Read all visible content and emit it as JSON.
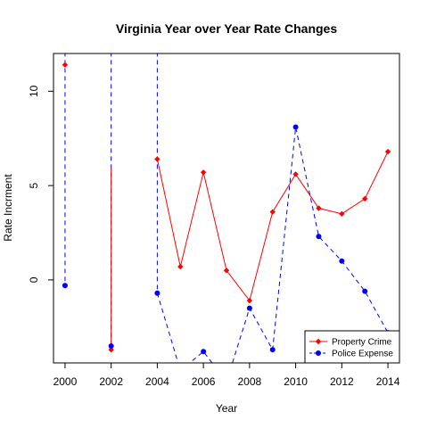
{
  "chart_data": {
    "type": "line",
    "title": "Virginia Year over Year Rate Changes",
    "xlabel": "Year",
    "ylabel": "Rate Incrment",
    "xlim": [
      1999.5,
      2014.5
    ],
    "ylim": [
      -4.4,
      12
    ],
    "x_ticks": [
      2000,
      2002,
      2004,
      2006,
      2008,
      2010,
      2012,
      2014
    ],
    "y_ticks": [
      0,
      5,
      10
    ],
    "grid": false,
    "legend_position": "bottom-right",
    "x": [
      2000,
      2001,
      2002,
      2003,
      2004,
      2005,
      2006,
      2007,
      2008,
      2009,
      2010,
      2011,
      2012,
      2013,
      2014
    ],
    "series": [
      {
        "name": "Property Crime",
        "color": "#ff0000",
        "line_style": "solid",
        "marker": "diamond",
        "values": [
          11.4,
          null,
          -3.7,
          null,
          6.4,
          0.7,
          5.7,
          0.5,
          -1.1,
          3.6,
          5.6,
          3.8,
          3.5,
          4.3,
          6.8
        ]
      },
      {
        "name": "Police Expense",
        "color": "#0000ff",
        "line_style": "dashed",
        "marker": "circle",
        "values": [
          -0.3,
          null,
          -3.5,
          null,
          -0.7,
          -4.8,
          -3.8,
          -5.4,
          -1.5,
          -3.7,
          8.1,
          2.3,
          1.0,
          -0.6,
          -2.8
        ]
      }
    ],
    "extra_segments": [
      {
        "series": "Police Expense",
        "points": [
          [
            2000,
            12.5
          ],
          [
            2000,
            -0.3
          ]
        ]
      },
      {
        "series": "Police Expense",
        "points": [
          [
            2002,
            12.5
          ],
          [
            2002,
            -3.5
          ]
        ]
      },
      {
        "series": "Property Crime",
        "points": [
          [
            2002,
            6.0
          ],
          [
            2002,
            -3.7
          ]
        ]
      },
      {
        "series": "Police Expense",
        "points": [
          [
            2004,
            12.5
          ],
          [
            2004,
            -0.7
          ]
        ]
      }
    ]
  }
}
